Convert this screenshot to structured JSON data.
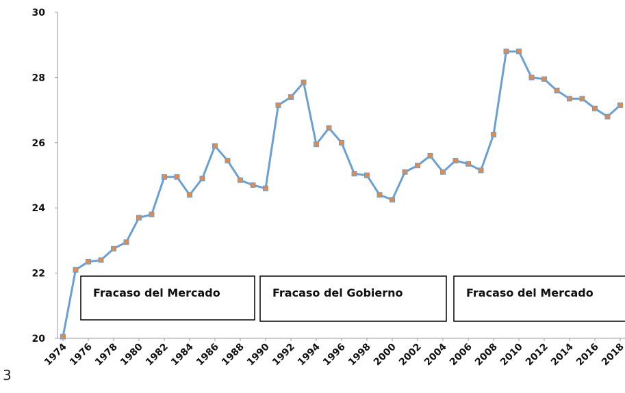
{
  "chart_data": {
    "type": "line",
    "x": [
      1974,
      1975,
      1976,
      1977,
      1978,
      1979,
      1980,
      1981,
      1982,
      1983,
      1984,
      1985,
      1986,
      1987,
      1988,
      1989,
      1990,
      1991,
      1992,
      1993,
      1994,
      1995,
      1996,
      1997,
      1998,
      1999,
      2000,
      2001,
      2002,
      2003,
      2004,
      2005,
      2006,
      2007,
      2008,
      2009,
      2010,
      2011,
      2012,
      2013,
      2014,
      2015,
      2016,
      2017,
      2018
    ],
    "series": [
      {
        "color": "#6a9fd4",
        "marker_color": "#e08a4c",
        "values": [
          20.05,
          22.1,
          22.35,
          22.4,
          22.75,
          22.95,
          23.7,
          23.8,
          24.95,
          24.95,
          24.4,
          24.9,
          25.9,
          25.45,
          24.85,
          24.7,
          24.6,
          27.15,
          27.4,
          27.85,
          25.95,
          26.45,
          26.0,
          25.05,
          25.0,
          24.4,
          24.25,
          25.1,
          25.3,
          25.6,
          25.1,
          25.45,
          25.35,
          25.15,
          26.25,
          28.8,
          28.8,
          28.0,
          27.95,
          27.6,
          27.35,
          27.35,
          27.05,
          26.8,
          27.15
        ]
      }
    ],
    "xlim": [
      1974,
      2018
    ],
    "xticks": [
      1974,
      1976,
      1978,
      1980,
      1982,
      1984,
      1986,
      1988,
      1990,
      1992,
      1994,
      1996,
      1998,
      2000,
      2002,
      2004,
      2006,
      2008,
      2010,
      2012,
      2014,
      2016,
      2018
    ],
    "ylim": [
      20,
      30
    ],
    "yticks": [
      20,
      22,
      24,
      26,
      28,
      30
    ],
    "grid": false,
    "annotations": [
      "Fracaso del Mercado",
      "Fracaso del Gobierno",
      "Fracaso del Mercado"
    ],
    "page_number": "3"
  }
}
